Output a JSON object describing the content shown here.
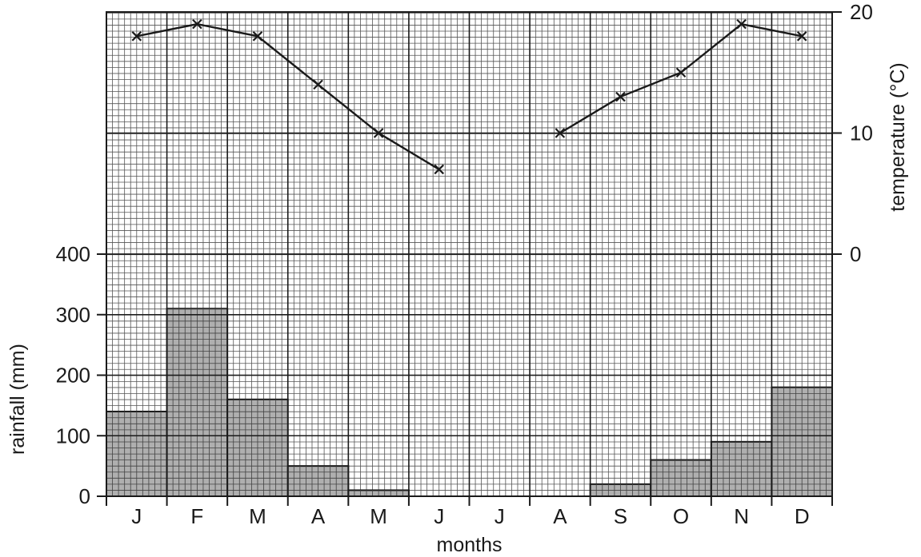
{
  "chart_data": {
    "type": "climate-graph",
    "title": "",
    "xlabel": "months",
    "categories": [
      "J",
      "F",
      "M",
      "A",
      "M",
      "J",
      "J",
      "A",
      "S",
      "O",
      "N",
      "D"
    ],
    "rainfall": {
      "type": "bar",
      "axis": "left",
      "ylabel": "rainfall (mm)",
      "ylim": [
        0,
        400
      ],
      "yticks": [
        0,
        100,
        200,
        300,
        400
      ],
      "values": [
        140,
        310,
        160,
        50,
        10,
        0,
        0,
        0,
        20,
        60,
        90,
        180
      ],
      "color": "#a6a6a6"
    },
    "temperature": {
      "type": "line",
      "axis": "right",
      "ylabel": "temperature (°C)",
      "ylim": [
        0,
        20
      ],
      "yticks": [
        0,
        10,
        20
      ],
      "values": [
        18,
        19,
        18,
        14,
        10,
        7,
        null,
        10,
        13,
        15,
        19,
        18
      ],
      "marker": "cross",
      "color": "#1a1a1a"
    },
    "grid": true
  }
}
